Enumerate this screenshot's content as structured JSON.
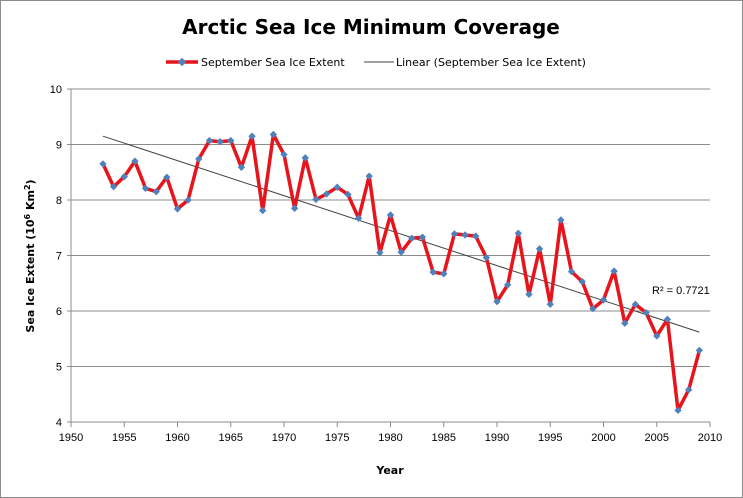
{
  "chart_data": {
    "type": "line",
    "title": "Arctic Sea Ice Minimum Coverage",
    "xlabel": "Year",
    "ylabel_main": "Sea Ice Extent (10",
    "ylabel_sup1": "6",
    "ylabel_mid": " Km",
    "ylabel_sup2": "2",
    "ylabel_end": ")",
    "xlim": [
      1950,
      2010
    ],
    "ylim": [
      4,
      10
    ],
    "x_ticks": [
      "1950",
      "1955",
      "1960",
      "1965",
      "1970",
      "1975",
      "1980",
      "1985",
      "1990",
      "1995",
      "2000",
      "2005",
      "2010"
    ],
    "y_ticks": [
      "4",
      "5",
      "6",
      "7",
      "8",
      "9",
      "10"
    ],
    "grid": "horizontal",
    "legend_position": "top",
    "series": [
      {
        "name": "September Sea Ice Extent",
        "color": "#e8141c",
        "marker_color": "#4f81bd",
        "x": [
          1953,
          1954,
          1955,
          1956,
          1957,
          1958,
          1959,
          1960,
          1961,
          1962,
          1963,
          1964,
          1965,
          1966,
          1967,
          1968,
          1969,
          1970,
          1971,
          1972,
          1973,
          1974,
          1975,
          1976,
          1977,
          1978,
          1979,
          1980,
          1981,
          1982,
          1983,
          1984,
          1985,
          1986,
          1987,
          1988,
          1989,
          1990,
          1991,
          1992,
          1993,
          1994,
          1995,
          1996,
          1997,
          1998,
          1999,
          2000,
          2001,
          2002,
          2003,
          2004,
          2005,
          2006,
          2007,
          2008,
          2009
        ],
        "values": [
          8.65,
          8.24,
          8.42,
          8.7,
          8.21,
          8.15,
          8.41,
          7.84,
          8.0,
          8.74,
          9.07,
          9.05,
          9.07,
          8.59,
          9.15,
          7.81,
          9.18,
          8.82,
          7.85,
          8.76,
          8.01,
          8.11,
          8.23,
          8.1,
          7.67,
          8.43,
          7.05,
          7.73,
          7.06,
          7.31,
          7.33,
          6.7,
          6.67,
          7.39,
          7.37,
          7.35,
          6.96,
          6.17,
          6.47,
          7.4,
          6.3,
          7.12,
          6.12,
          7.64,
          6.71,
          6.53,
          6.04,
          6.2,
          6.72,
          5.78,
          6.12,
          5.97,
          5.55,
          5.85,
          4.21,
          4.58,
          5.29
        ]
      },
      {
        "name": "Linear (September Sea Ice Extent)",
        "color": "#404040",
        "x": [
          1953,
          2009
        ],
        "values": [
          9.15,
          5.62
        ]
      }
    ],
    "annotation": "R² = 0.7721"
  }
}
